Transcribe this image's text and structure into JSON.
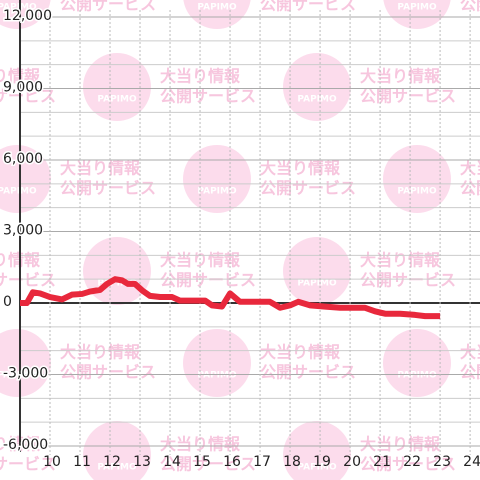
{
  "chart_data": {
    "type": "line",
    "watermark": {
      "logo": "PAPIMO",
      "line1": "大当り情報",
      "line2": "公開サービス"
    },
    "x": [
      9,
      9.23,
      9.43,
      9.67,
      10,
      10.4,
      10.73,
      11.07,
      11.33,
      11.67,
      11.9,
      12.17,
      12.4,
      12.6,
      12.83,
      13.1,
      13.33,
      13.67,
      14.07,
      14.33,
      14.83,
      15.17,
      15.4,
      15.73,
      16,
      16.33,
      16.83,
      17.33,
      17.67,
      18,
      18.27,
      18.67,
      19.17,
      19.67,
      20.17,
      20.5,
      20.83,
      21.17,
      21.67,
      22.17,
      22.5,
      23
    ],
    "series": [
      {
        "color": "#e8283c",
        "values": [
          0,
          0,
          450,
          400,
          250,
          150,
          350,
          380,
          480,
          550,
          800,
          1000,
          950,
          800,
          800,
          500,
          300,
          250,
          250,
          100,
          100,
          100,
          -100,
          -150,
          400,
          50,
          50,
          50,
          -200,
          -100,
          50,
          -100,
          -150,
          -200,
          -200,
          -200,
          -350,
          -450,
          -450,
          -500,
          -550,
          -550
        ]
      }
    ],
    "xlim": [
      9,
      24.33
    ],
    "xticks": [
      10,
      11,
      12,
      13,
      14,
      15,
      16,
      17,
      18,
      19,
      20,
      21,
      22,
      23,
      24
    ],
    "ylim": [
      -6000,
      12000
    ],
    "yticks": [
      {
        "value": 12000,
        "label": "12,000"
      },
      {
        "value": 9000,
        "label": "9,000"
      },
      {
        "value": 6000,
        "label": "6,000"
      },
      {
        "value": 3000,
        "label": "3,000"
      },
      0,
      {
        "value": -3000,
        "label": "-3,000"
      },
      {
        "value": -6000,
        "label": "-6,000"
      }
    ],
    "y_minor_grid": [
      11000,
      10000,
      8000,
      7000,
      5000,
      4000,
      2000,
      1000,
      -1000,
      -2000,
      -4000,
      -5000
    ],
    "grid": true
  }
}
